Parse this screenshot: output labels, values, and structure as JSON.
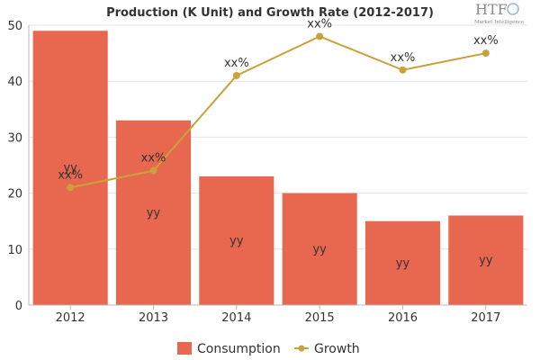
{
  "chart_data": {
    "type": "bar",
    "title": "Production (K Unit) and Growth Rate (2012-2017)",
    "categories": [
      "2012",
      "2013",
      "2014",
      "2015",
      "2016",
      "2017"
    ],
    "series": [
      {
        "name": "Consumption",
        "type": "bar",
        "values": [
          49,
          33,
          23,
          20,
          15,
          16
        ],
        "color": "#E8674F",
        "labels": [
          "yy",
          "yy",
          "yy",
          "yy",
          "yy",
          "yy"
        ]
      },
      {
        "name": "Growth",
        "type": "line",
        "values": [
          21,
          24,
          41,
          48,
          42,
          45
        ],
        "color": "#C8A23A",
        "labels": [
          "xx%",
          "xx%",
          "xx%",
          "xx%",
          "xx%",
          "xx%"
        ]
      }
    ],
    "ylim": [
      0,
      50
    ],
    "yticks": [
      0,
      10,
      20,
      30,
      40,
      50
    ],
    "grid": true,
    "legend_position": "bottom-center"
  },
  "logo": {
    "brand": "HTF",
    "tagline": "Market Intelligence"
  }
}
